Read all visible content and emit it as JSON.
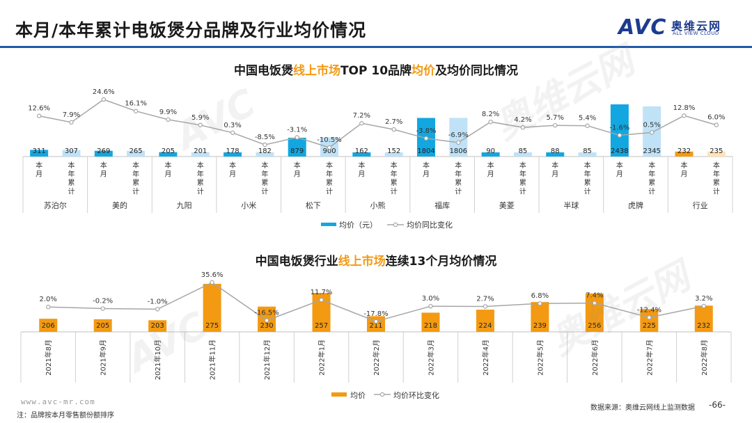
{
  "header": {
    "title": "本月/本年累计电饭煲分品牌及行业均价情况"
  },
  "logo": {
    "mark": "AVC",
    "cn": "奥维云网",
    "en": "ALL VIEW CLOUD"
  },
  "watermark": {
    "avc": "AVC",
    "cn": "奥维云网",
    "en": "ALL VIEW CLOUD"
  },
  "chart_data": [
    {
      "type": "bar",
      "title_parts": [
        {
          "text": "中国电饭煲",
          "highlight": false
        },
        {
          "text": "线上市场",
          "highlight": true
        },
        {
          "text": "TOP 10品牌",
          "highlight": false
        },
        {
          "text": "均价",
          "highlight": true
        },
        {
          "text": "及均价同比情况",
          "highlight": false
        }
      ],
      "groups": [
        "苏泊尔",
        "美的",
        "九阳",
        "小米",
        "松下",
        "小熊",
        "福库",
        "美菱",
        "半球",
        "虎牌",
        "行业"
      ],
      "sub_labels": [
        "本月",
        "本年累计"
      ],
      "values": [
        311,
        307,
        269,
        265,
        205,
        201,
        178,
        182,
        879,
        900,
        162,
        152,
        1804,
        1806,
        90,
        85,
        88,
        85,
        2438,
        2345,
        232,
        235
      ],
      "yoy_labels": [
        "12.6%",
        "7.9%",
        "24.6%",
        "16.1%",
        "9.9%",
        "5.9%",
        "0.3%",
        "-8.5%",
        "-3.1%",
        "-10.5%",
        "7.2%",
        "2.7%",
        "-3.8%",
        "-6.9%",
        "8.2%",
        "4.2%",
        "5.7%",
        "5.4%",
        "-1.6%",
        "0.5%",
        "12.8%",
        "6.0%"
      ],
      "legend": {
        "bar": "均价（元）",
        "line": "均价同比变化"
      },
      "colors": {
        "current": "#12a7e0",
        "cumulative": "#bfe2f7",
        "industry_current": "#f39a12",
        "industry_cumulative": "#fde4b8",
        "line": "#a6a6a6"
      }
    },
    {
      "type": "bar",
      "title_parts": [
        {
          "text": "中国电饭煲行业",
          "highlight": false
        },
        {
          "text": "线上市场",
          "highlight": true
        },
        {
          "text": "连续13个月均价情况",
          "highlight": false
        }
      ],
      "categories": [
        "2021年8月",
        "2021年9月",
        "2021年10月",
        "2021年11月",
        "2021年12月",
        "2022年1月",
        "2022年2月",
        "2022年3月",
        "2022年4月",
        "2022年5月",
        "2022年6月",
        "2022年7月",
        "2022年8月"
      ],
      "values": [
        206,
        205,
        203,
        275,
        230,
        257,
        211,
        218,
        224,
        239,
        256,
        225,
        232
      ],
      "mom_labels": [
        "2.0%",
        "-0.2%",
        "-1.0%",
        "35.6%",
        "-16.5%",
        "11.7%",
        "-17.8%",
        "3.0%",
        "2.7%",
        "6.8%",
        "7.4%",
        "-12.4%",
        "3.2%"
      ],
      "legend": {
        "bar": "均价",
        "line": "均价环比变化"
      },
      "colors": {
        "bar": "#f39a12",
        "line": "#a6a6a6"
      }
    }
  ],
  "footer": {
    "url": "www.avc-mr.com",
    "note": "注：品牌按本月零售额份额排序",
    "source": "数据来源：奥维云网线上监测数据",
    "page": "-66-"
  }
}
